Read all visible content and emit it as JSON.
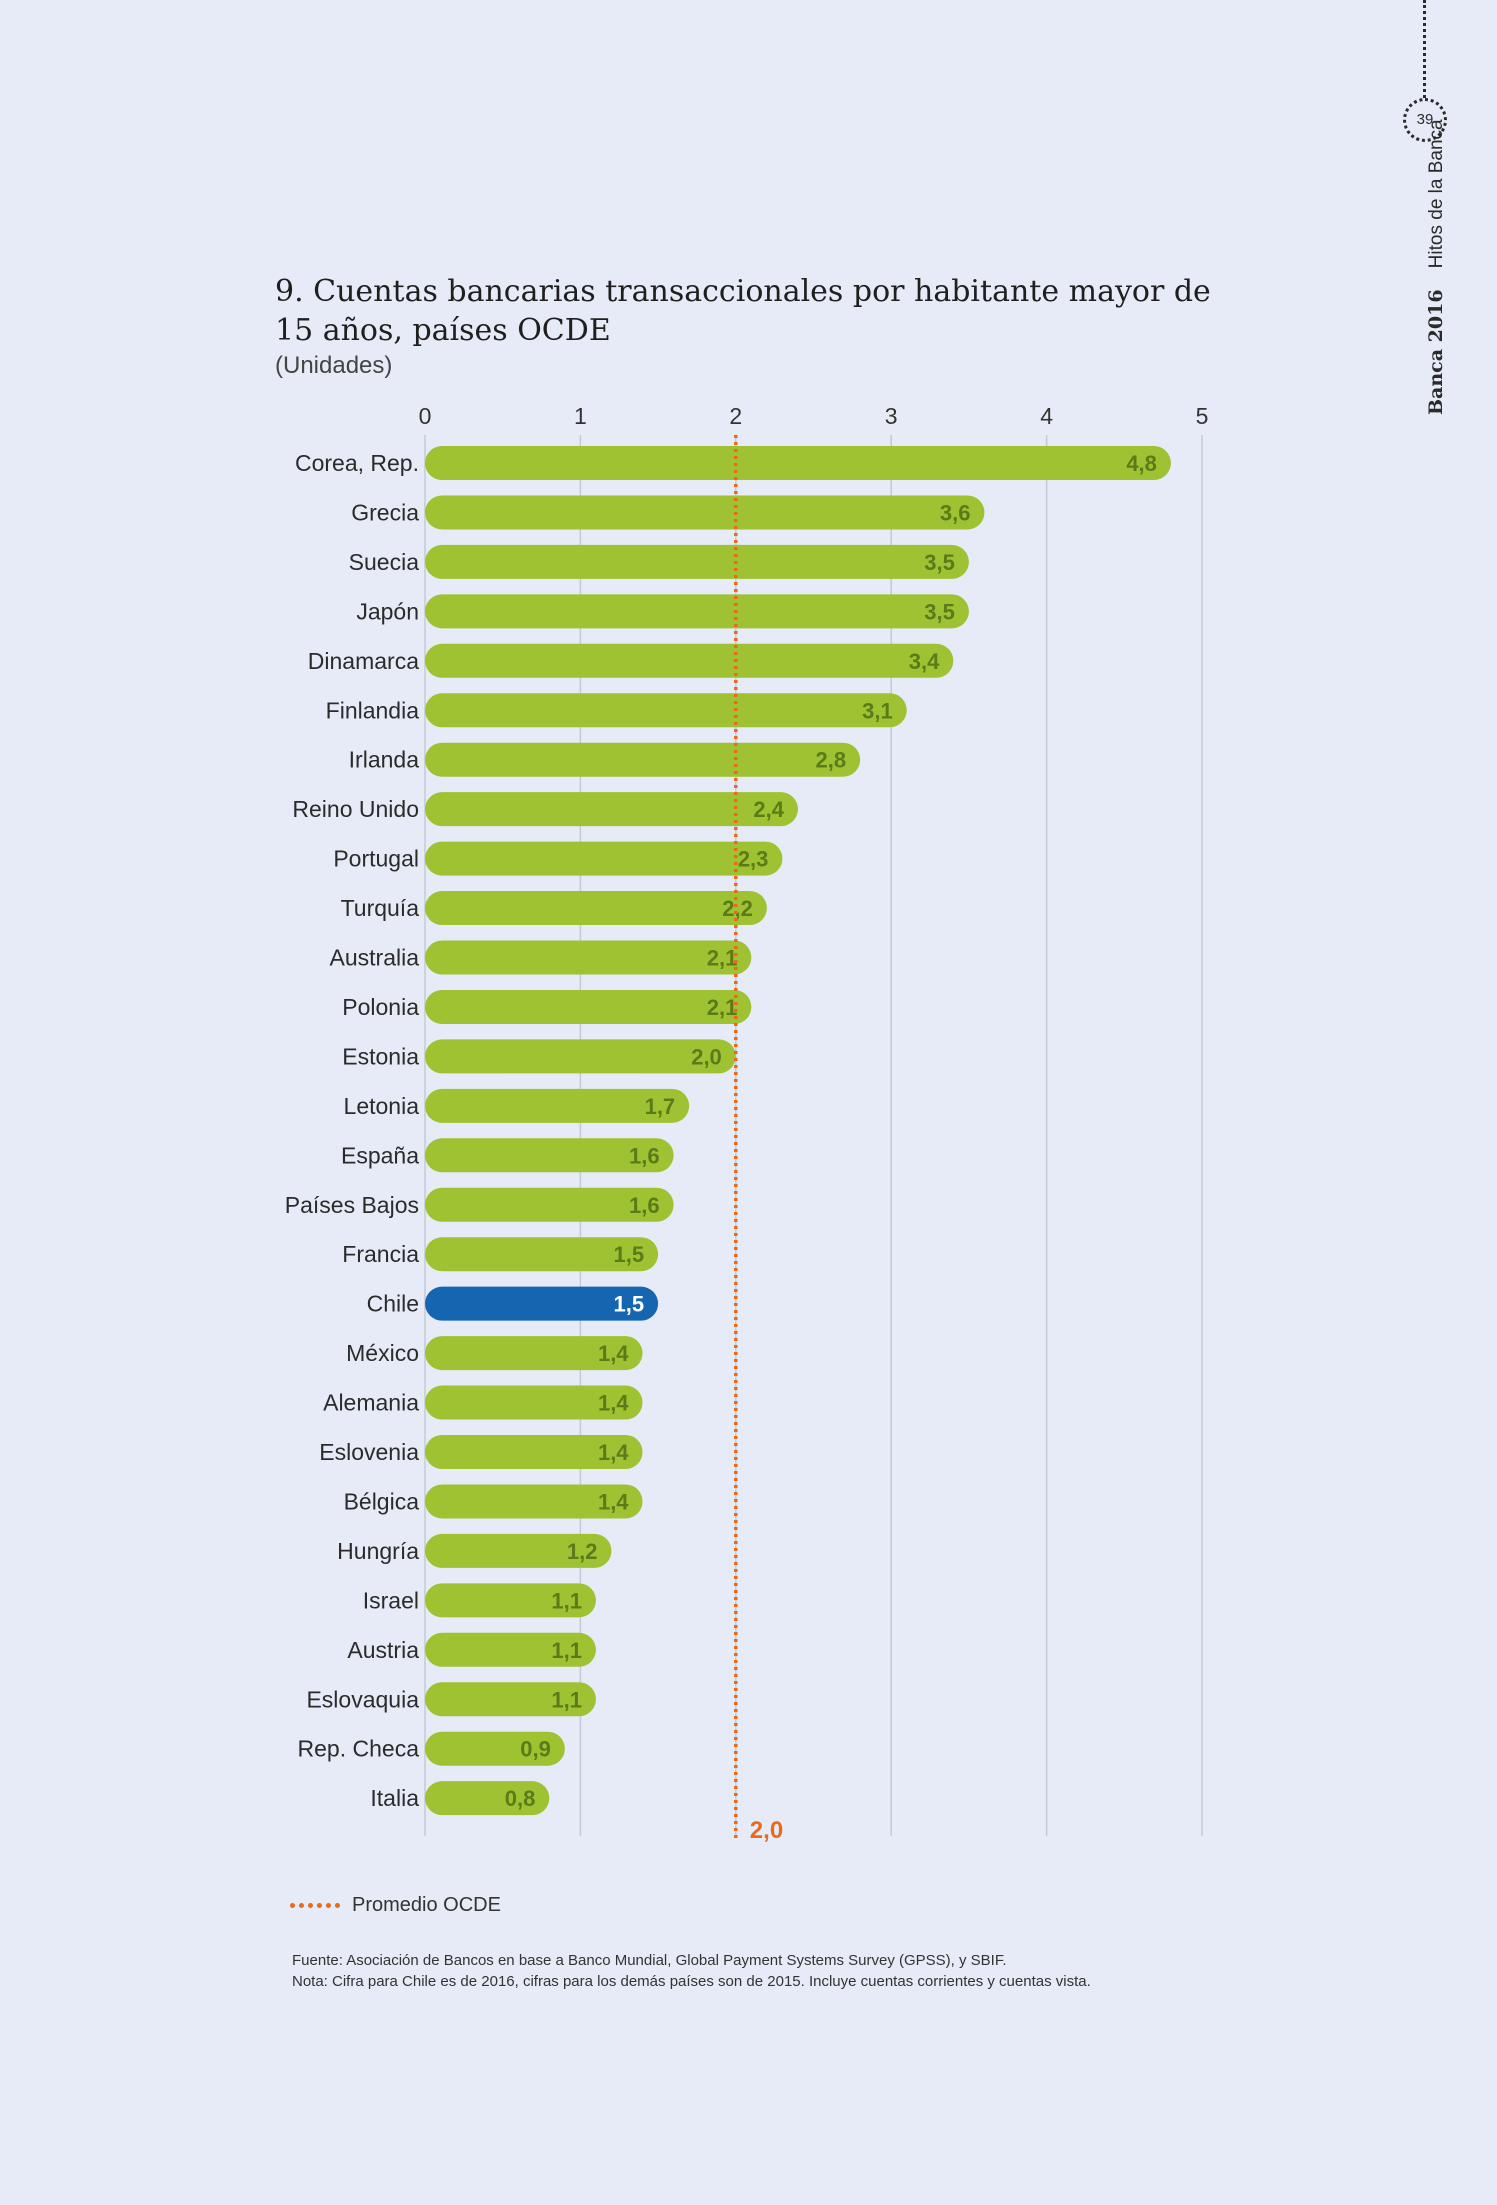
{
  "side": {
    "page_number": "39",
    "publication_bold": "Banca 2016",
    "publication_rest": "Hitos de la Banca"
  },
  "header": {
    "title": "9. Cuentas bancarias transaccionales por habitante mayor de 15 años, países OCDE",
    "subtitle": "(Unidades)"
  },
  "chart_data": {
    "type": "bar",
    "orientation": "horizontal",
    "categories": [
      "Corea, Rep.",
      "Grecia",
      "Suecia",
      "Japón",
      "Dinamarca",
      "Finlandia",
      "Irlanda",
      "Reino Unido",
      "Portugal",
      "Turquía",
      "Australia",
      "Polonia",
      "Estonia",
      "Letonia",
      "España",
      "Países Bajos",
      "Francia",
      "Chile",
      "México",
      "Alemania",
      "Eslovenia",
      "Bélgica",
      "Hungría",
      "Israel",
      "Austria",
      "Eslovaquia",
      "Rep. Checa",
      "Italia"
    ],
    "values": [
      4.8,
      3.6,
      3.5,
      3.5,
      3.4,
      3.1,
      2.8,
      2.4,
      2.3,
      2.2,
      2.1,
      2.1,
      2.0,
      1.7,
      1.6,
      1.6,
      1.5,
      1.5,
      1.4,
      1.4,
      1.4,
      1.4,
      1.2,
      1.1,
      1.1,
      1.1,
      0.9,
      0.8
    ],
    "value_labels": [
      "4,8",
      "3,6",
      "3,5",
      "3,5",
      "3,4",
      "3,1",
      "2,8",
      "2,4",
      "2,3",
      "2,2",
      "2,1",
      "2,1",
      "2,0",
      "1,7",
      "1,6",
      "1,6",
      "1,5",
      "1,5",
      "1,4",
      "1,4",
      "1,4",
      "1,4",
      "1,2",
      "1,1",
      "1,1",
      "1,1",
      "0,9",
      "0,8"
    ],
    "xlim": [
      0,
      5
    ],
    "x_ticks": [
      0,
      1,
      2,
      3,
      4,
      5
    ],
    "x_tick_labels": [
      "0",
      "1",
      "2",
      "3",
      "4",
      "5"
    ],
    "axis_position": "top",
    "grid": true,
    "highlight_category": "Chile",
    "colors": {
      "bar": "#9ec232",
      "bar_label": "#5d7a1a",
      "highlight": "#1565b0",
      "highlight_label": "#ffffff",
      "reference": "#ea6a1c",
      "grid": "#c4c9d6"
    },
    "reference_line": {
      "value": 2.0,
      "label": "2,0",
      "name": "Promedio OCDE"
    }
  },
  "legend": {
    "label": "Promedio OCDE"
  },
  "notes": {
    "source": "Fuente: Asociación de Bancos en base a Banco Mundial, Global Payment Systems Survey (GPSS), y SBIF.",
    "note": "Nota: Cifra para Chile es de 2016, cifras para los demás países son de 2015. Incluye cuentas corrientes y cuentas vista."
  }
}
